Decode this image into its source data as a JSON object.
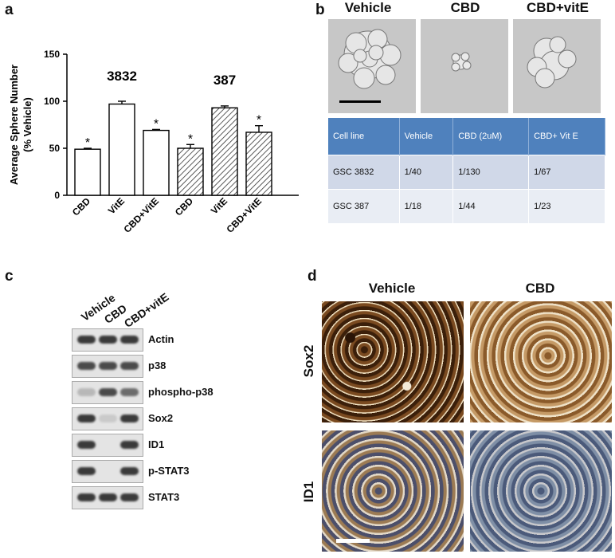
{
  "panels": {
    "a": "a",
    "b": "b",
    "c": "c",
    "d": "d"
  },
  "chart_data": {
    "type": "bar",
    "ylabel": "Average Sphere Number\n(% Vehicle)",
    "ylim": [
      0,
      150
    ],
    "yticks": [
      "0",
      "50",
      "100",
      "150"
    ],
    "groups": [
      {
        "name": "3832",
        "categories": [
          "CBD",
          "VitE",
          "CBD+VitE"
        ],
        "values": [
          49,
          97,
          69
        ],
        "errors": [
          1,
          3,
          1
        ],
        "significant": [
          true,
          false,
          true
        ],
        "pattern": "open"
      },
      {
        "name": "387",
        "categories": [
          "CBD",
          "VitE",
          "CBD+VitE"
        ],
        "values": [
          50,
          93,
          67
        ],
        "errors": [
          4,
          2,
          7
        ],
        "significant": [
          true,
          false,
          true
        ],
        "pattern": "hatched"
      }
    ],
    "significance_marker": "*"
  },
  "panel_b": {
    "conditions": [
      "Vehicle",
      "CBD",
      "CBD+vitE"
    ],
    "table": {
      "headers": [
        "Cell line",
        "Vehicle",
        "CBD (2uM)",
        "CBD+ Vit E"
      ],
      "rows": [
        [
          "GSC 3832",
          "1/40",
          "1/130",
          "1/67"
        ],
        [
          "GSC 387",
          "1/18",
          "1/44",
          "1/23"
        ]
      ]
    },
    "colors": {
      "header": "#4f81bd",
      "row1": "#d0d8e8",
      "row2": "#e9edf4"
    }
  },
  "panel_c": {
    "lanes": [
      "Vehicle",
      "CBD",
      "CBD+vitE"
    ],
    "blots": [
      {
        "label": "Actin",
        "intensity": [
          1,
          1,
          1
        ]
      },
      {
        "label": "p38",
        "intensity": [
          0.9,
          0.9,
          0.9
        ]
      },
      {
        "label": "phospho-p38",
        "intensity": [
          0.25,
          0.9,
          0.7
        ]
      },
      {
        "label": "Sox2",
        "intensity": [
          1,
          0.15,
          1
        ]
      },
      {
        "label": "ID1",
        "intensity": [
          1,
          0,
          1
        ]
      },
      {
        "label": "p-STAT3",
        "intensity": [
          1,
          0,
          1
        ]
      },
      {
        "label": "STAT3",
        "intensity": [
          1,
          1,
          1
        ]
      }
    ]
  },
  "panel_d": {
    "columns": [
      "Vehicle",
      "CBD"
    ],
    "rows": [
      "Sox2",
      "ID1"
    ]
  }
}
